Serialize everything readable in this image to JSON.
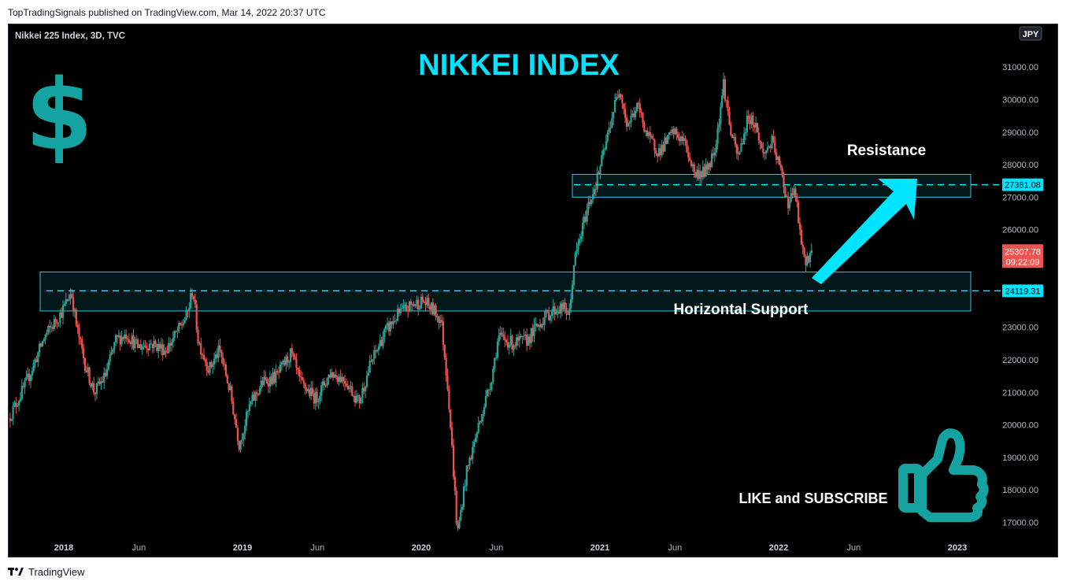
{
  "publisher_line": "TopTradingSignals published on TradingView.com, Mar 14, 2022 20:37 UTC",
  "branding": {
    "footer": "TradingView"
  },
  "chart_data": {
    "type": "candlestick",
    "symbol_line": "Nikkei 225 Index, 3D, TVC",
    "title": "NIKKEI INDEX",
    "currency": "JPY",
    "y_ticks": [
      "31000.00",
      "30000.00",
      "29000.00",
      "28000.00",
      "27000.00",
      "26000.00",
      "23000.00",
      "22000.00",
      "21000.00",
      "20000.00",
      "19000.00",
      "18000.00",
      "17000.00"
    ],
    "y_tick_values": [
      31000,
      30000,
      29000,
      28000,
      27000,
      26000,
      23000,
      22000,
      21000,
      20000,
      19000,
      18000,
      17000
    ],
    "x_ticks": [
      {
        "label": "2018",
        "year": 2018.0,
        "bold": true
      },
      {
        "label": "Jun",
        "year": 2018.42,
        "bold": false
      },
      {
        "label": "2019",
        "year": 2019.0,
        "bold": true
      },
      {
        "label": "Jun",
        "year": 2019.42,
        "bold": false
      },
      {
        "label": "2020",
        "year": 2020.0,
        "bold": true
      },
      {
        "label": "Jun",
        "year": 2020.42,
        "bold": false
      },
      {
        "label": "2021",
        "year": 2021.0,
        "bold": true
      },
      {
        "label": "Jun",
        "year": 2021.42,
        "bold": false
      },
      {
        "label": "2022",
        "year": 2022.0,
        "bold": true
      },
      {
        "label": "Jun",
        "year": 2022.42,
        "bold": false
      },
      {
        "label": "2023",
        "year": 2023.0,
        "bold": true
      }
    ],
    "x_range": [
      2017.7,
      2023.1
    ],
    "y_range": [
      16400,
      31700
    ],
    "price_path": [
      [
        2017.7,
        20200
      ],
      [
        2017.8,
        21300
      ],
      [
        2017.9,
        22700
      ],
      [
        2018.0,
        23500
      ],
      [
        2018.05,
        24100
      ],
      [
        2018.08,
        23000
      ],
      [
        2018.13,
        21800
      ],
      [
        2018.18,
        21000
      ],
      [
        2018.24,
        21500
      ],
      [
        2018.3,
        22600
      ],
      [
        2018.36,
        22800
      ],
      [
        2018.42,
        22400
      ],
      [
        2018.5,
        22500
      ],
      [
        2018.58,
        22300
      ],
      [
        2018.66,
        23000
      ],
      [
        2018.7,
        23400
      ],
      [
        2018.73,
        24200
      ],
      [
        2018.76,
        22600
      ],
      [
        2018.82,
        21700
      ],
      [
        2018.88,
        22300
      ],
      [
        2018.94,
        21000
      ],
      [
        2018.99,
        19400
      ],
      [
        2019.05,
        20600
      ],
      [
        2019.12,
        21300
      ],
      [
        2019.2,
        21500
      ],
      [
        2019.28,
        22200
      ],
      [
        2019.33,
        21300
      ],
      [
        2019.42,
        20800
      ],
      [
        2019.5,
        21600
      ],
      [
        2019.58,
        21400
      ],
      [
        2019.66,
        20700
      ],
      [
        2019.72,
        21800
      ],
      [
        2019.8,
        22800
      ],
      [
        2019.88,
        23400
      ],
      [
        2019.96,
        23700
      ],
      [
        2020.02,
        23800
      ],
      [
        2020.08,
        23500
      ],
      [
        2020.12,
        23200
      ],
      [
        2020.16,
        21000
      ],
      [
        2020.2,
        17600
      ],
      [
        2020.21,
        16600
      ],
      [
        2020.26,
        18500
      ],
      [
        2020.33,
        20000
      ],
      [
        2020.4,
        21400
      ],
      [
        2020.44,
        22700
      ],
      [
        2020.52,
        22500
      ],
      [
        2020.6,
        22600
      ],
      [
        2020.68,
        23200
      ],
      [
        2020.74,
        23500
      ],
      [
        2020.8,
        23600
      ],
      [
        2020.84,
        23400
      ],
      [
        2020.86,
        24900
      ],
      [
        2020.9,
        25800
      ],
      [
        2020.94,
        26700
      ],
      [
        2020.99,
        27500
      ],
      [
        2021.04,
        28600
      ],
      [
        2021.08,
        29600
      ],
      [
        2021.12,
        30400
      ],
      [
        2021.16,
        29200
      ],
      [
        2021.22,
        29800
      ],
      [
        2021.28,
        28800
      ],
      [
        2021.34,
        28400
      ],
      [
        2021.42,
        29000
      ],
      [
        2021.48,
        28700
      ],
      [
        2021.54,
        27700
      ],
      [
        2021.6,
        27800
      ],
      [
        2021.64,
        28300
      ],
      [
        2021.66,
        28800
      ],
      [
        2021.7,
        30500
      ],
      [
        2021.74,
        29000
      ],
      [
        2021.78,
        28200
      ],
      [
        2021.84,
        29500
      ],
      [
        2021.88,
        29200
      ],
      [
        2021.92,
        28300
      ],
      [
        2021.97,
        28700
      ],
      [
        2022.02,
        27800
      ],
      [
        2022.06,
        26800
      ],
      [
        2022.1,
        27200
      ],
      [
        2022.12,
        26200
      ],
      [
        2022.15,
        25000
      ],
      [
        2022.19,
        25300
      ]
    ],
    "last_price": 25307.78,
    "countdown": "09:22:09",
    "levels": [
      {
        "name": "Resistance",
        "value": 27381.08,
        "zone": [
          27000,
          27700
        ]
      },
      {
        "name": "Horizontal Support",
        "value": 24119.31,
        "zone": [
          23500,
          24700
        ]
      }
    ],
    "annotations": [
      "Resistance",
      "Horizontal Support",
      "LIKE and SUBSCRIBE"
    ],
    "colors": {
      "up": "#26a69a",
      "down": "#ef5350",
      "accent": "#00e5ff",
      "zone": "#25c8e0",
      "background": "#000000",
      "last_price_bg": "#ef5350"
    }
  }
}
